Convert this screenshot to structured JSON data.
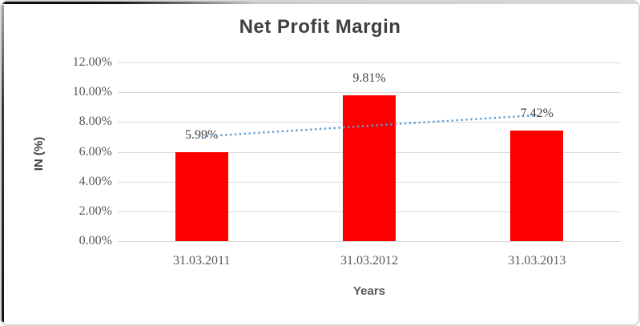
{
  "frame": {
    "accent_dark": "#111111",
    "accent_light": "#d6d6d6"
  },
  "chart_data": {
    "type": "bar",
    "title": "Net Profit Margin",
    "xlabel": "Years",
    "ylabel": "IN (%)",
    "categories": [
      "31.03.2011",
      "31.03.2012",
      "31.03.2013"
    ],
    "values": [
      5.99,
      9.81,
      7.42
    ],
    "data_labels": [
      "5.99%",
      "9.81%",
      "7.42%"
    ],
    "y_ticks": [
      "12.00%",
      "10.00%",
      "8.00%",
      "6.00%",
      "4.00%",
      "2.00%",
      "0.00%"
    ],
    "y_tick_values": [
      12,
      10,
      8,
      6,
      4,
      2,
      0
    ],
    "ylim": [
      0,
      12
    ],
    "grid": true,
    "legend": false,
    "bar_color": "#ff0000",
    "gridline_color": "#d9d9d9",
    "text_color": "#595959",
    "title_color": "#3f3f3f",
    "trendline": {
      "kind": "linear",
      "style": "dotted",
      "color": "#5b9bd5",
      "start_value": 7.03,
      "end_value": 8.46
    }
  }
}
